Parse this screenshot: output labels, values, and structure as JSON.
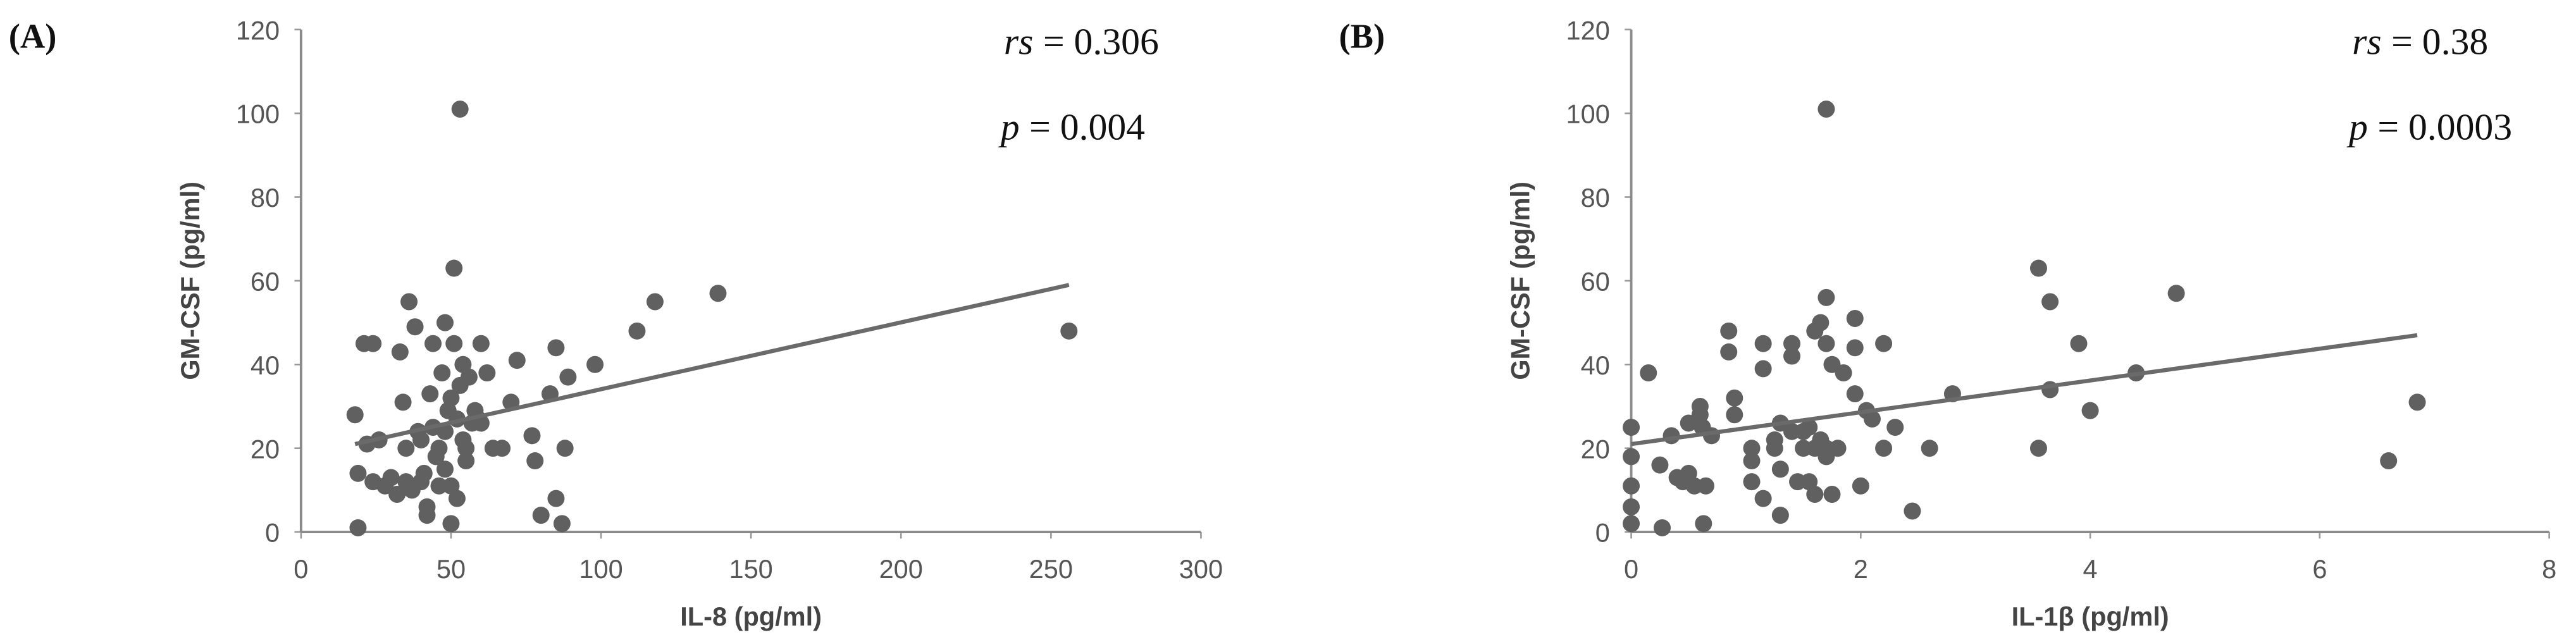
{
  "chart_data": [
    {
      "type": "scatter",
      "panel": "(A)",
      "xlabel": "IL-8 (pg/ml)",
      "ylabel": "GM-CSF (pg/ml)",
      "annotations": [
        {
          "label": "rs",
          "text": "= 0.306"
        },
        {
          "label": "p",
          "text": "= 0.004"
        }
      ],
      "color": "#606060",
      "line_color": "#6a6a6a",
      "xlim": [
        0,
        300
      ],
      "xticks": [
        0,
        50,
        100,
        150,
        200,
        250,
        300
      ],
      "ylim": [
        0,
        120
      ],
      "yticks": [
        0,
        20,
        40,
        60,
        80,
        100,
        120
      ],
      "x": [
        18,
        19,
        19,
        21,
        24,
        22,
        24,
        26,
        28,
        30,
        32,
        33,
        34,
        35,
        35,
        36,
        37,
        38,
        39,
        40,
        40,
        41,
        42,
        42,
        43,
        44,
        44,
        45,
        46,
        46,
        47,
        48,
        48,
        48,
        49,
        50,
        50,
        50,
        51,
        51,
        52,
        52,
        53,
        53,
        54,
        54,
        55,
        55,
        56,
        57,
        58,
        59,
        60,
        60,
        62,
        64,
        67,
        70,
        72,
        77,
        78,
        80,
        83,
        85,
        85,
        87,
        88,
        89,
        98,
        112,
        118,
        139,
        256
      ],
      "y": [
        28,
        14,
        1,
        45,
        45,
        21,
        12,
        22,
        11,
        13,
        9,
        43,
        31,
        20,
        12,
        55,
        10,
        49,
        24,
        22,
        12,
        14,
        6,
        4,
        33,
        45,
        25,
        18,
        20,
        11,
        38,
        50,
        24,
        15,
        29,
        32,
        11,
        2,
        63,
        45,
        27,
        8,
        101,
        35,
        40,
        22,
        20,
        17,
        37,
        26,
        29,
        27,
        26,
        45,
        38,
        20,
        20,
        31,
        41,
        23,
        17,
        4,
        33,
        44,
        8,
        2,
        20,
        37,
        40,
        48,
        55,
        57,
        48
      ],
      "trendline": {
        "x": [
          18,
          256
        ],
        "y": [
          21,
          59
        ]
      }
    },
    {
      "type": "scatter",
      "panel": "(B)",
      "xlabel": "IL-1β (pg/ml)",
      "ylabel": "GM-CSF (pg/ml)",
      "annotations": [
        {
          "label": "rs",
          "text": "= 0.38"
        },
        {
          "label": "p",
          "text": "= 0.0003"
        }
      ],
      "color": "#606060",
      "line_color": "#6a6a6a",
      "xlim": [
        0,
        8
      ],
      "xticks": [
        0,
        2,
        4,
        6,
        8
      ],
      "ylim": [
        0,
        120
      ],
      "yticks": [
        0,
        20,
        40,
        60,
        80,
        100,
        120
      ],
      "x": [
        0,
        0,
        0,
        0,
        0,
        0.15,
        0.25,
        0.27,
        0.35,
        0.4,
        0.45,
        0.5,
        0.5,
        0.55,
        0.6,
        0.6,
        0.62,
        0.63,
        0.65,
        0.7,
        0.85,
        0.85,
        0.9,
        0.9,
        1.05,
        1.05,
        1.05,
        1.15,
        1.15,
        1.15,
        1.25,
        1.25,
        1.3,
        1.3,
        1.3,
        1.4,
        1.4,
        1.4,
        1.45,
        1.5,
        1.5,
        1.55,
        1.55,
        1.6,
        1.6,
        1.6,
        1.65,
        1.65,
        1.7,
        1.7,
        1.7,
        1.7,
        1.7,
        1.75,
        1.75,
        1.8,
        1.85,
        1.95,
        1.95,
        1.95,
        2.0,
        2.05,
        2.1,
        2.2,
        2.2,
        2.3,
        2.45,
        2.6,
        2.8,
        3.55,
        3.55,
        3.65,
        3.65,
        3.9,
        4.0,
        4.4,
        4.75,
        6.6,
        6.85
      ],
      "y": [
        25,
        18,
        11,
        6,
        2,
        38,
        16,
        1,
        23,
        13,
        12,
        26,
        14,
        11,
        30,
        28,
        25,
        2,
        11,
        23,
        48,
        43,
        32,
        28,
        20,
        17,
        12,
        8,
        39,
        45,
        22,
        20,
        15,
        26,
        4,
        45,
        42,
        24,
        12,
        24,
        20,
        25,
        12,
        20,
        48,
        9,
        50,
        22,
        101,
        56,
        45,
        18,
        20,
        40,
        9,
        20,
        38,
        44,
        51,
        33,
        11,
        29,
        27,
        45,
        20,
        25,
        5,
        20,
        33,
        63,
        20,
        55,
        34,
        45,
        29,
        38,
        57,
        17,
        31
      ],
      "trendline": {
        "x": [
          0,
          6.85
        ],
        "y": [
          21,
          47
        ]
      }
    }
  ]
}
